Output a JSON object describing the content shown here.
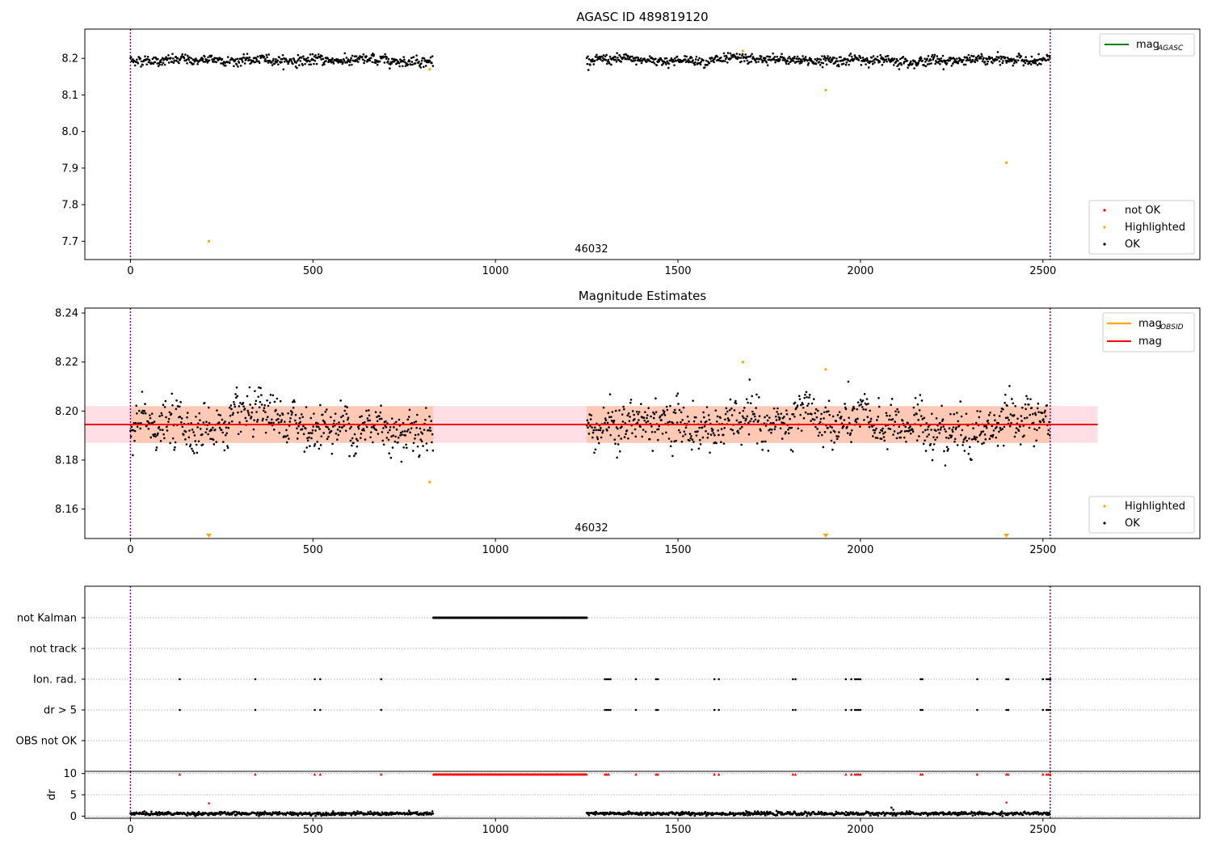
{
  "chart_data": [
    {
      "type": "scatter",
      "title": "AGASC ID 489819120",
      "annotation": "46032",
      "xlim": [
        -125,
        2930
      ],
      "ylim": [
        7.65,
        8.28
      ],
      "x_ticks": [
        0,
        500,
        1000,
        1500,
        2000,
        2500
      ],
      "y_ticks": [
        7.7,
        7.8,
        7.9,
        8.0,
        8.1,
        8.2
      ],
      "y_tick_labels": [
        "7.7",
        "7.8",
        "7.9",
        "8.0",
        "8.1",
        "8.2"
      ],
      "vlines": [
        0,
        2520
      ],
      "legend_lines": [
        {
          "name": "mag",
          "subscript": "AGASC",
          "color": "#008000",
          "y": null
        }
      ],
      "legend_points": [
        {
          "name": "not OK",
          "color": "#ff0000"
        },
        {
          "name": "Highlighted",
          "color": "#ffa500"
        },
        {
          "name": "OK",
          "color": "#000000"
        }
      ],
      "ok_segments": [
        {
          "x_start": 0,
          "x_end": 830,
          "y_center": 8.195,
          "spread": 0.012
        },
        {
          "x_start": 1250,
          "x_end": 2520,
          "y_center": 8.195,
          "spread": 0.012
        }
      ],
      "highlighted_points": [
        [
          215,
          7.7
        ],
        [
          820,
          8.17
        ],
        [
          1678,
          8.22
        ],
        [
          1905,
          8.113
        ],
        [
          2400,
          7.915
        ]
      ]
    },
    {
      "type": "scatter",
      "title": "Magnitude Estimates",
      "annotation": "46032",
      "xlim": [
        -125,
        2930
      ],
      "ylim": [
        8.148,
        8.242
      ],
      "x_ticks": [
        0,
        500,
        1000,
        1500,
        2000,
        2500
      ],
      "y_ticks": [
        8.16,
        8.18,
        8.2,
        8.22,
        8.24
      ],
      "y_tick_labels": [
        "8.16",
        "8.18",
        "8.20",
        "8.22",
        "8.24"
      ],
      "vlines": [
        0,
        2520
      ],
      "legend_lines": [
        {
          "name": "mag",
          "subscript": "OBSID",
          "color": "#ffa500",
          "y": 8.1945
        },
        {
          "name": "mag",
          "subscript": "",
          "color": "#ff0000",
          "y": 8.1945
        }
      ],
      "legend_points": [
        {
          "name": "Highlighted",
          "color": "#ffa500"
        },
        {
          "name": "OK",
          "color": "#000000"
        }
      ],
      "band_range": [
        8.187,
        8.202
      ],
      "band_x": [
        -125,
        2650
      ],
      "ok_segments": [
        {
          "x_start": 0,
          "x_end": 830,
          "y_center": 8.194,
          "spread": 0.008
        },
        {
          "x_start": 1250,
          "x_end": 2520,
          "y_center": 8.194,
          "spread": 0.008
        }
      ],
      "highlighted_points": [
        [
          820,
          8.171
        ],
        [
          1678,
          8.22
        ],
        [
          1905,
          8.217
        ]
      ],
      "out_of_range_markers": [
        215,
        1905,
        2400
      ]
    },
    {
      "type": "scatter",
      "title": "",
      "xlim": [
        -125,
        2930
      ],
      "x_ticks": [
        0,
        500,
        1000,
        1500,
        2000,
        2500
      ],
      "vlines": [
        0,
        2520
      ],
      "flag_rows": [
        "not Kalman",
        "not track",
        "Ion. rad.",
        "dr > 5",
        "OBS not OK"
      ],
      "not_kalman_range": [
        830,
        1250
      ],
      "ion_rad_x": [
        135,
        342,
        505,
        520,
        687,
        1300,
        1305,
        1310,
        1315,
        1385,
        1440,
        1445,
        1600,
        1612,
        1815,
        1822,
        1960,
        1975,
        1985,
        1990,
        1995,
        2000,
        2165,
        2170,
        2320,
        2400,
        2405,
        2500,
        2510,
        2515,
        2520
      ],
      "dr_panel": {
        "ylabel": "dr",
        "ylim": [
          -0.5,
          10.5
        ],
        "y_ticks": [
          0,
          5,
          10
        ],
        "y_tick_labels": [
          "0",
          "5",
          "10"
        ],
        "red_high_x": [
          135,
          342,
          505,
          520,
          687,
          1300,
          1305,
          1310,
          1385,
          1440,
          1445,
          1600,
          1612,
          1815,
          1822,
          1960,
          1975,
          1985,
          1990,
          1995,
          2000,
          2165,
          2170,
          2320,
          2400,
          2405,
          2500,
          2510,
          2515,
          2520
        ],
        "red_range": [
          830,
          1250
        ],
        "red_high_y": 9.8,
        "red_low_points": [
          [
            215,
            3.0
          ],
          [
            2400,
            3.2
          ]
        ],
        "black_segments": [
          {
            "x_start": 0,
            "x_end": 830,
            "y_center": 0.6,
            "spread": 0.25
          },
          {
            "x_start": 1250,
            "x_end": 2520,
            "y_center": 0.6,
            "spread": 0.25
          }
        ],
        "black_extra_points": [
          [
            2085,
            2.0
          ],
          [
            2090,
            1.5
          ]
        ]
      }
    }
  ]
}
